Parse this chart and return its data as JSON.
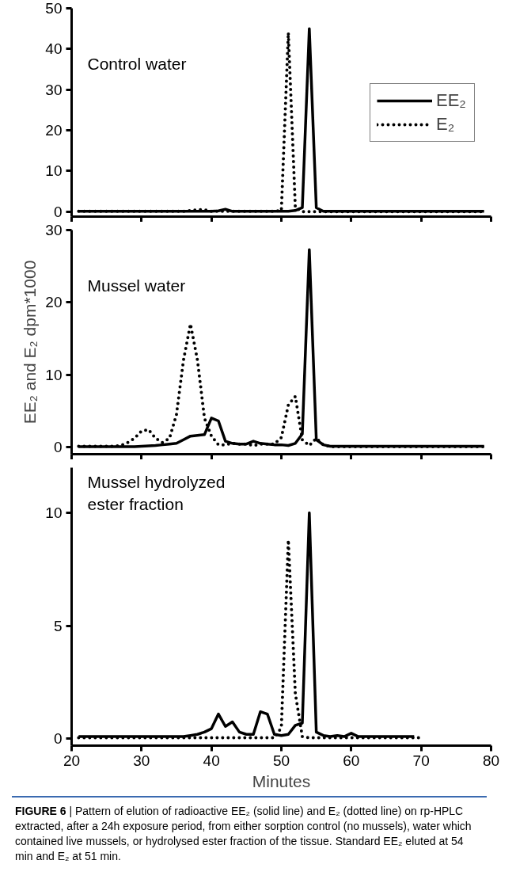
{
  "chart_data": [
    {
      "type": "line",
      "title": "Control water",
      "xlim": [
        20,
        80
      ],
      "xticks": [
        20,
        30,
        40,
        50,
        60,
        70,
        80
      ],
      "ylim": [
        -1.2,
        50
      ],
      "yticks": [
        0,
        10,
        20,
        30,
        40,
        50
      ],
      "tick_labels": "y",
      "grid": false,
      "legend": "right",
      "x": [
        21,
        22,
        23,
        24,
        25,
        26,
        27,
        28,
        29,
        30,
        31,
        32,
        33,
        34,
        35,
        36,
        37,
        38,
        39,
        40,
        41,
        42,
        43,
        44,
        45,
        46,
        47,
        48,
        49,
        50,
        51,
        52,
        53,
        54,
        55,
        56,
        57,
        58,
        59,
        60,
        61,
        62,
        63,
        64,
        65,
        66,
        67,
        68,
        69,
        70,
        71,
        72,
        73,
        74,
        75,
        76,
        77,
        78,
        79
      ],
      "series": [
        {
          "name": "EE₂",
          "color": "#000000",
          "line_style": "solid",
          "values": [
            0.1,
            0.1,
            0.1,
            0.1,
            0.1,
            0.1,
            0.1,
            0.1,
            0.1,
            0.1,
            0.1,
            0.1,
            0.1,
            0.1,
            0.1,
            0.1,
            0.1,
            0.1,
            0.1,
            0.1,
            0.2,
            0.6,
            0.1,
            0.1,
            0.1,
            0.1,
            0.1,
            0.1,
            0.1,
            0.1,
            0.1,
            0.3,
            1,
            45,
            1,
            0.1,
            0.1,
            0.1,
            0.1,
            0.1,
            0.1,
            0.1,
            0.1,
            0.1,
            0.1,
            0.1,
            0.1,
            0.1,
            0.1,
            0.1,
            0.1,
            0.1,
            0.1,
            0.1,
            0.1,
            0.1,
            0.1,
            0.1,
            0.1
          ]
        },
        {
          "name": "E₂",
          "color": "#000000",
          "line_style": "dotted",
          "values": [
            0.1,
            0.1,
            0.1,
            0.1,
            0.1,
            0.1,
            0.1,
            0.1,
            0.1,
            0.1,
            0.1,
            0.1,
            0.1,
            0.1,
            0.1,
            0.1,
            0.3,
            0.5,
            0.5,
            0.1,
            0.1,
            0.1,
            0.1,
            0.1,
            0.1,
            0.1,
            0.1,
            0.1,
            0.1,
            0.3,
            44,
            1,
            0,
            0,
            0,
            0,
            0,
            0,
            0,
            0,
            0,
            0,
            0,
            0,
            0,
            0,
            0,
            0,
            0,
            0,
            0,
            0,
            0,
            0,
            0,
            0,
            0,
            0,
            0
          ]
        }
      ]
    },
    {
      "type": "line",
      "title": "Mussel water",
      "ylabel": "EE₂ and E₂ dpm*1000",
      "xlim": [
        20,
        80
      ],
      "xticks": [
        20,
        30,
        40,
        50,
        60,
        70,
        80
      ],
      "ylim": [
        -1,
        30
      ],
      "yticks": [
        0,
        10,
        20,
        30
      ],
      "tick_labels": "y",
      "grid": false,
      "x": [
        21,
        22,
        23,
        24,
        25,
        26,
        27,
        28,
        29,
        30,
        31,
        32,
        33,
        34,
        35,
        36,
        37,
        38,
        39,
        40,
        41,
        42,
        43,
        44,
        45,
        46,
        47,
        48,
        49,
        50,
        51,
        52,
        53,
        54,
        55,
        56,
        57,
        58,
        59,
        60,
        61,
        62,
        63,
        64,
        65,
        66,
        67,
        68,
        69,
        70,
        71,
        72,
        73,
        74,
        75,
        76,
        77,
        78,
        79
      ],
      "series": [
        {
          "color": "#000000",
          "line_style": "solid",
          "values": [
            0.05,
            0.05,
            0.05,
            0.05,
            0.05,
            0.05,
            0.05,
            0.05,
            0.05,
            0.1,
            0.15,
            0.2,
            0.3,
            0.4,
            0.5,
            1,
            1.5,
            1.6,
            1.7,
            4,
            3.6,
            0.8,
            0.5,
            0.4,
            0.4,
            0.8,
            0.5,
            0.4,
            0.3,
            0.3,
            0.2,
            0.5,
            1.8,
            27.3,
            1,
            0.3,
            0.1,
            0.1,
            0.1,
            0.1,
            0.1,
            0.1,
            0.1,
            0.1,
            0.1,
            0.1,
            0.1,
            0.1,
            0.1,
            0.1,
            0.1,
            0.1,
            0.1,
            0.1,
            0.1,
            0.1,
            0.1,
            0.1,
            0.1
          ]
        },
        {
          "color": "#000000",
          "line_style": "dotted",
          "values": [
            0.1,
            0.1,
            0.1,
            0.1,
            0.1,
            0.1,
            0.2,
            0.6,
            1.2,
            2.2,
            2.4,
            1.2,
            0.6,
            1.2,
            4.5,
            12,
            17,
            12,
            4,
            1.5,
            0.3,
            0.3,
            0.5,
            0.4,
            0.4,
            0.2,
            0.4,
            0.4,
            0.4,
            1.3,
            5.8,
            7,
            1,
            0.2,
            1.2,
            0.3,
            0.05,
            0.05,
            0.05,
            0.05,
            0.05,
            0.05,
            0.05,
            0.05,
            0.05,
            0.05,
            0.05,
            0.05,
            0.05,
            0.05,
            0.05,
            0.05,
            0.05,
            0.05,
            0.05,
            0.05,
            0.05,
            0.05,
            0.05
          ]
        }
      ]
    },
    {
      "type": "line",
      "title": "Mussel hydrolyzed ester fraction",
      "xlabel": "Minutes",
      "xlim": [
        20,
        80
      ],
      "xticks": [
        20,
        30,
        40,
        50,
        60,
        70,
        80
      ],
      "ylim": [
        -0.3,
        12
      ],
      "yticks": [
        0,
        5,
        10
      ],
      "grid": false,
      "annotations": [
        "FIGURE 6 | Pattern of elution of radioactive EE₂ (solid line) and E₂ (dotted line) on rp-HPLC extracted, after a 24h exposure period, from either sorption control (no mussels), water which contained live mussels, or hydrolysed ester fraction of the tissue. Standard EE₂ eluted at 54 min and E₂ at 51 min."
      ],
      "series": [
        {
          "color": "#000000",
          "line_style": "solid",
          "x": [
            21,
            22,
            23,
            24,
            25,
            26,
            27,
            28,
            29,
            30,
            31,
            32,
            33,
            34,
            35,
            36,
            37,
            38,
            39,
            40,
            41,
            42,
            43,
            44,
            45,
            46,
            47,
            48,
            49,
            50,
            51,
            52,
            53,
            54,
            55,
            56,
            57,
            58,
            59,
            60,
            61,
            62,
            63,
            64,
            65,
            66,
            67,
            68,
            69
          ],
          "values": [
            0.1,
            0.1,
            0.1,
            0.1,
            0.1,
            0.1,
            0.1,
            0.1,
            0.1,
            0.1,
            0.1,
            0.1,
            0.1,
            0.1,
            0.1,
            0.1,
            0.15,
            0.2,
            0.3,
            0.45,
            1.1,
            0.55,
            0.75,
            0.3,
            0.2,
            0.2,
            1.2,
            1.1,
            0.2,
            0.15,
            0.2,
            0.6,
            0.7,
            10,
            0.3,
            0.15,
            0.1,
            0.15,
            0.1,
            0.25,
            0.1,
            0.1,
            0.1,
            0.1,
            0.1,
            0.1,
            0.1,
            0.1,
            0.1
          ]
        },
        {
          "color": "#000000",
          "line_style": "dotted",
          "x": [
            21,
            22,
            23,
            24,
            25,
            26,
            27,
            28,
            29,
            30,
            31,
            32,
            33,
            34,
            35,
            36,
            37,
            38,
            39,
            40,
            41,
            42,
            43,
            44,
            45,
            46,
            47,
            48,
            49,
            50,
            51,
            52,
            53,
            54,
            55,
            56,
            57,
            58,
            59,
            60,
            61,
            62,
            63,
            64,
            65,
            66,
            67,
            68,
            69,
            70
          ],
          "values": [
            0.05,
            0.05,
            0.05,
            0.05,
            0.05,
            0.05,
            0.05,
            0.05,
            0.05,
            0.05,
            0.05,
            0.05,
            0.05,
            0.05,
            0.05,
            0.05,
            0.05,
            0.05,
            0.05,
            0.05,
            0.05,
            0.05,
            0.05,
            0.05,
            0.05,
            0.05,
            0.05,
            0.05,
            0.05,
            0.5,
            8.8,
            2,
            0.1,
            0.05,
            0.05,
            0.05,
            0.05,
            0.05,
            0.05,
            0.05,
            0.05,
            0.05,
            0.05,
            0.05,
            0.05,
            0.05,
            0.05,
            0.05,
            0.05,
            0.05
          ]
        }
      ]
    }
  ]
}
